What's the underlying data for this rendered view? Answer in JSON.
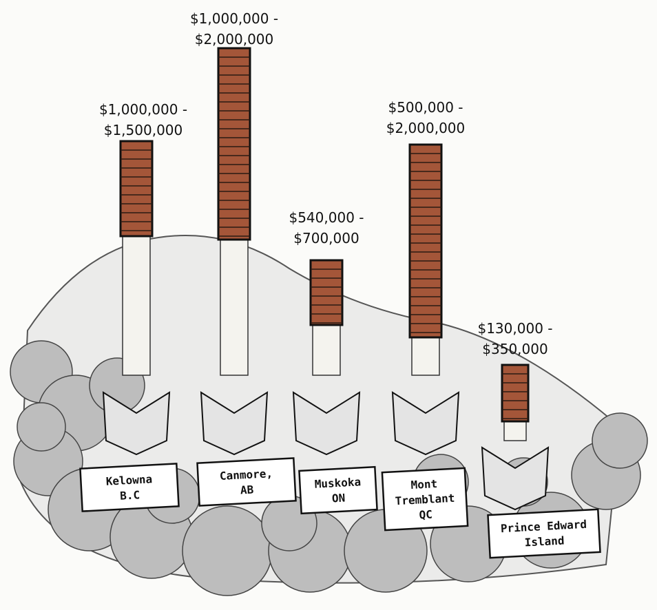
{
  "items": [
    {
      "price": [
        "$1,000,000 -",
        "$1,500,000"
      ],
      "place": [
        "Kelowna",
        "B.C"
      ]
    },
    {
      "price": [
        "$1,000,000 -",
        "$2,000,000"
      ],
      "place": [
        "Canmore,",
        "AB"
      ]
    },
    {
      "price": [
        "$540,000 -",
        "$700,000"
      ],
      "place": [
        "Muskoka",
        "ON"
      ]
    },
    {
      "price": [
        "$500,000 -",
        "$2,000,000"
      ],
      "place": [
        "Mont",
        "Tremblant",
        "QC"
      ]
    },
    {
      "price": [
        "$130,000 -",
        "$350,000"
      ],
      "place": [
        "Prince Edward",
        "Island"
      ]
    }
  ]
}
